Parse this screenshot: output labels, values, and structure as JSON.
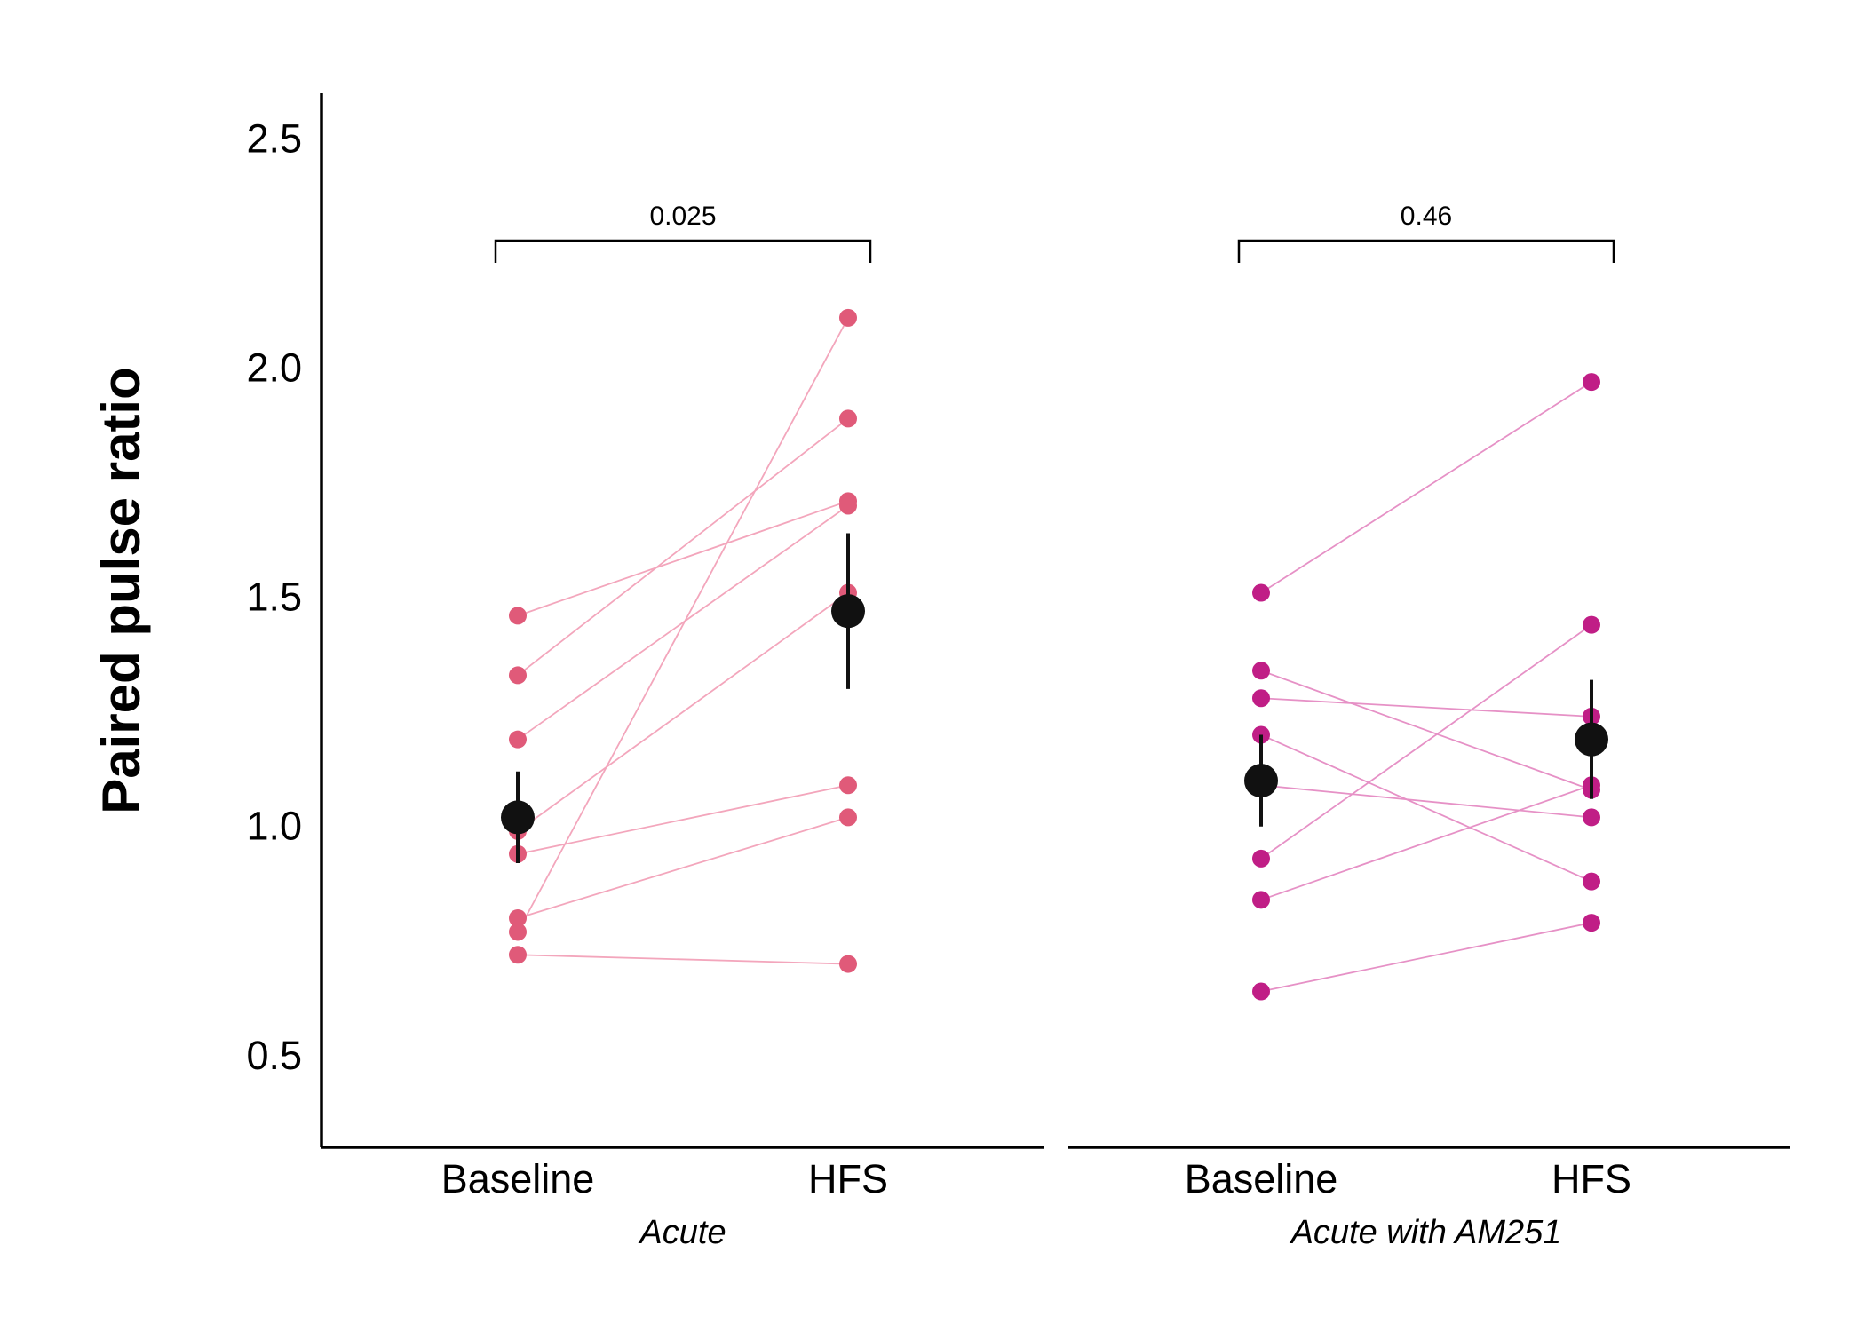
{
  "chart_data": {
    "type": "scatter",
    "ylabel": "Paired pulse ratio",
    "ylim": [
      0.3,
      2.6
    ],
    "yticks": [
      0.5,
      1.0,
      1.5,
      2.0,
      2.5
    ],
    "ytick_labels": [
      "0.5",
      "1.0",
      "1.5",
      "2.0",
      "2.5"
    ],
    "categories": [
      "Baseline",
      "HFS"
    ],
    "grid": false,
    "legend": "none",
    "panels": [
      {
        "name": "Acute",
        "color": "#E05A79",
        "line_color": "#F3A6BC",
        "p_value": "0.025",
        "pairs": [
          {
            "baseline": 1.46,
            "hfs": 1.71
          },
          {
            "baseline": 1.33,
            "hfs": 1.89
          },
          {
            "baseline": 1.19,
            "hfs": 1.7
          },
          {
            "baseline": 0.99,
            "hfs": 1.51
          },
          {
            "baseline": 0.94,
            "hfs": 1.09
          },
          {
            "baseline": 0.8,
            "hfs": 1.02
          },
          {
            "baseline": 0.77,
            "hfs": 2.11
          },
          {
            "baseline": 0.72,
            "hfs": 0.7
          }
        ],
        "mean": {
          "baseline": 1.02,
          "hfs": 1.47
        },
        "sem": {
          "baseline": 0.1,
          "hfs": 0.17
        }
      },
      {
        "name": "Acute with AM251",
        "color": "#C01E86",
        "line_color": "#E691C6",
        "p_value": "0.46",
        "pairs": [
          {
            "baseline": 1.51,
            "hfs": 1.97
          },
          {
            "baseline": 1.34,
            "hfs": 1.08
          },
          {
            "baseline": 1.28,
            "hfs": 1.24
          },
          {
            "baseline": 1.2,
            "hfs": 0.88
          },
          {
            "baseline": 1.09,
            "hfs": 1.02
          },
          {
            "baseline": 0.93,
            "hfs": 1.44
          },
          {
            "baseline": 0.84,
            "hfs": 1.09
          },
          {
            "baseline": 0.64,
            "hfs": 0.79
          }
        ],
        "mean": {
          "baseline": 1.1,
          "hfs": 1.19
        },
        "sem": {
          "baseline": 0.1,
          "hfs": 0.13
        }
      }
    ],
    "mean_color": "#111111"
  }
}
